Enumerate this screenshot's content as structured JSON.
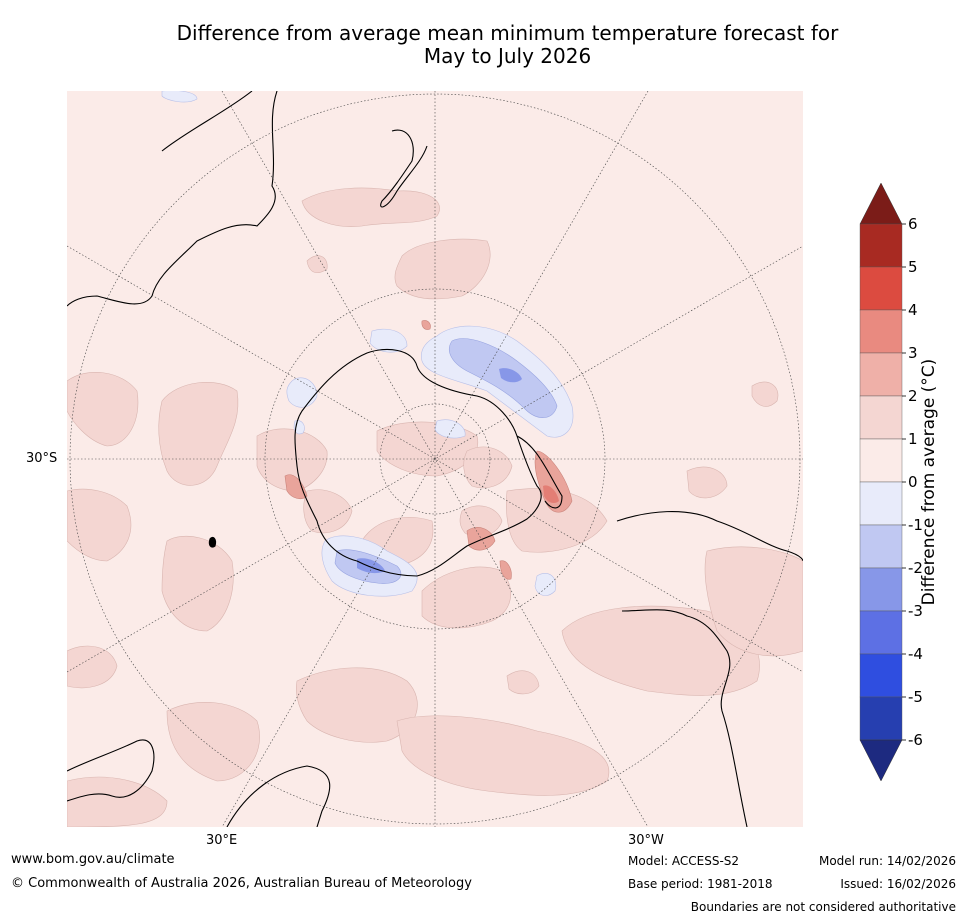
{
  "title": {
    "line1": "Difference from average mean minimum temperature forecast for",
    "line2": "May to July 2026"
  },
  "map": {
    "lat_label": "30°S",
    "lon_labels": [
      "30°E",
      "30°W"
    ]
  },
  "colorbar": {
    "title": "Difference from average (°C)",
    "ticks": [
      "6",
      "5",
      "4",
      "3",
      "2",
      "1",
      "0",
      "-1",
      "-2",
      "-3",
      "-4",
      "-5",
      "-6"
    ],
    "colors": {
      "above_6": "#7b1c18",
      "5_6": "#a82a22",
      "4_5": "#dc4b40",
      "3_4": "#e98a80",
      "2_3": "#efb0a8",
      "1_2": "#f4d6d2",
      "0_1": "#fbebe8",
      "m1_0": "#e8ebfa",
      "m2_m1": "#c0c8f2",
      "m3_m2": "#8797e8",
      "m4_m3": "#5d70e4",
      "m5_m4": "#2f4ee0",
      "m6_m5": "#263fb0",
      "below_m6": "#1d2a80"
    }
  },
  "footer": {
    "website": "www.bom.gov.au/climate",
    "copyright": "© Commonwealth of Australia 2026, Australian Bureau of Meteorology",
    "model": "Model: ACCESS-S2",
    "base_period": "Base period: 1981-2018",
    "model_run": "Model run: 14/02/2026",
    "issued": "Issued: 16/02/2026",
    "disclaimer": "Boundaries are not considered authoritative"
  }
}
